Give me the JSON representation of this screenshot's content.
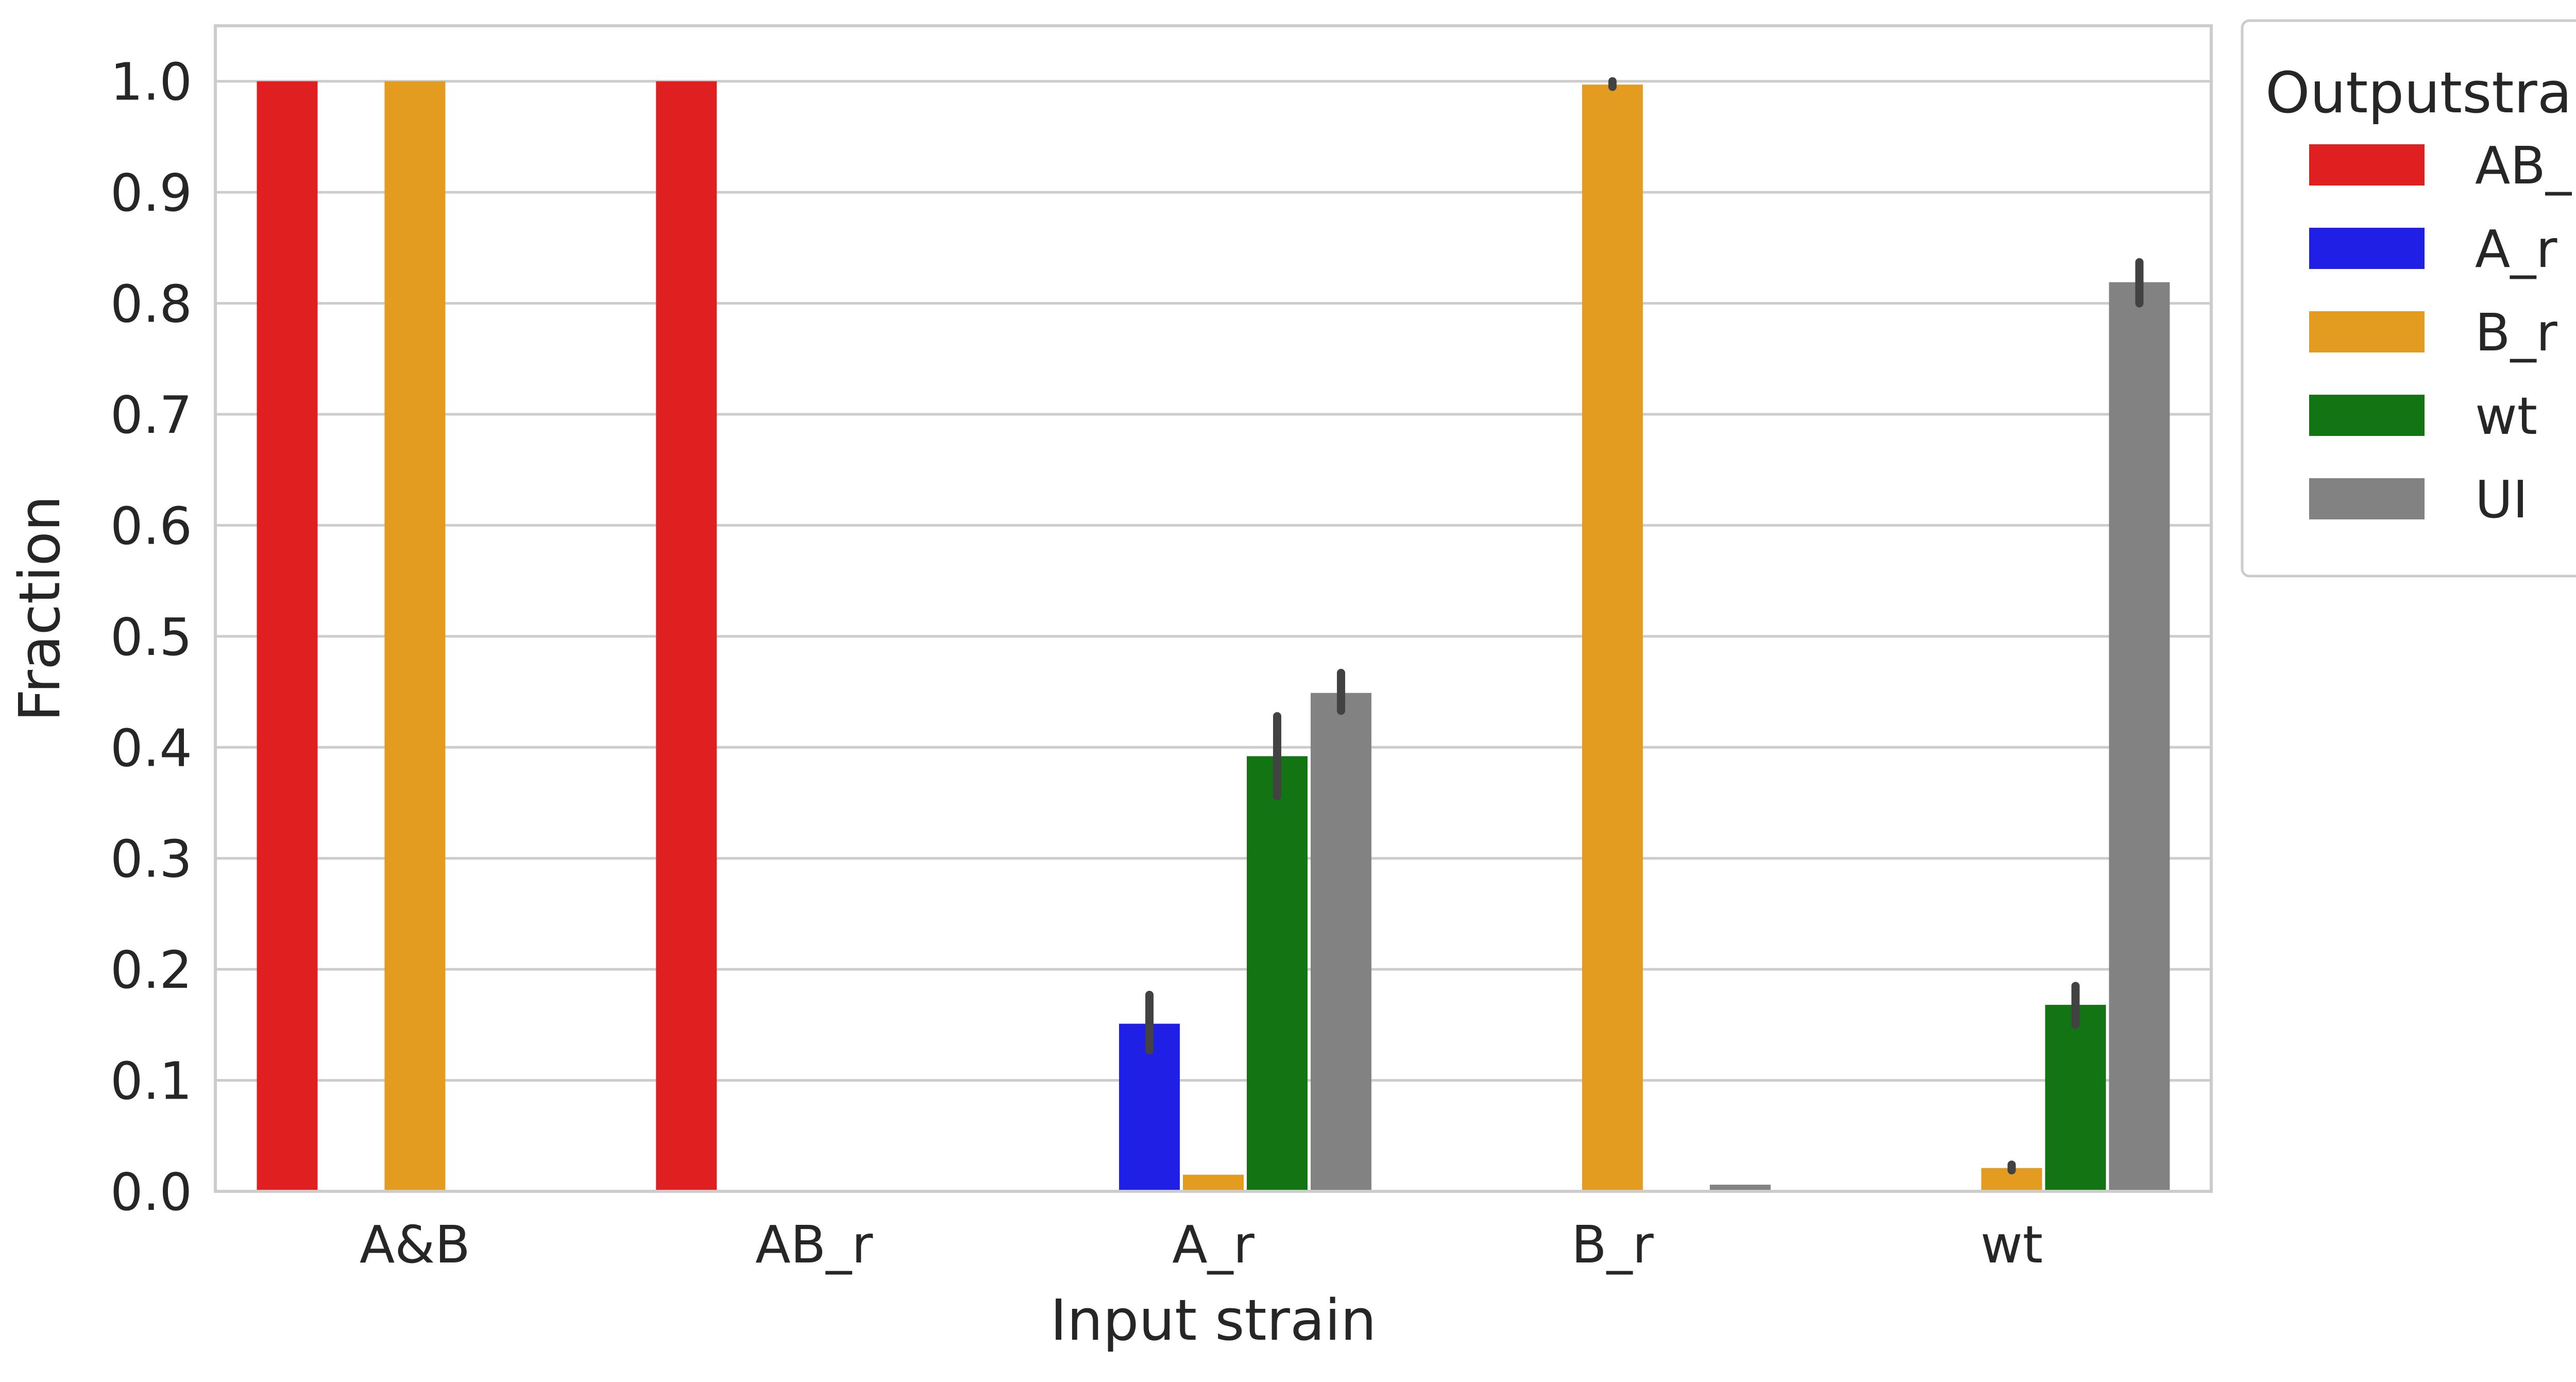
{
  "chart_data": {
    "type": "bar",
    "title": "",
    "xlabel": "Input strain",
    "ylabel": "Fraction",
    "categories": [
      "A&B",
      "AB_r",
      "A_r",
      "B_r",
      "wt"
    ],
    "ylim": [
      0,
      1.05
    ],
    "yticks": [
      0.0,
      0.1,
      0.2,
      0.3,
      0.4,
      0.5,
      0.6,
      0.7,
      0.8,
      0.9,
      1.0
    ],
    "ytick_labels": [
      "0.0",
      "0.1",
      "0.2",
      "0.3",
      "0.4",
      "0.5",
      "0.6",
      "0.7",
      "0.8",
      "0.9",
      "1.0"
    ],
    "grid": "horizontal",
    "legend": {
      "title": "Outputstrains",
      "placement": "outside-right-top"
    },
    "series": [
      {
        "name": "AB_r",
        "color": "#e02020",
        "values": [
          1.0,
          1.0,
          0,
          0,
          0
        ],
        "errors": [
          null,
          null,
          null,
          null,
          null
        ]
      },
      {
        "name": "A_r",
        "color": "#1f1fe6",
        "values": [
          0,
          0,
          0.151,
          0,
          0
        ],
        "errors": [
          null,
          null,
          [
            0.127,
            0.177
          ],
          null,
          null
        ]
      },
      {
        "name": "B_r",
        "color": "#e39b20",
        "values": [
          1.0,
          0,
          0.015,
          0.997,
          0.021
        ],
        "errors": [
          null,
          null,
          null,
          [
            0.995,
            1.0
          ],
          [
            0.019,
            0.024
          ]
        ]
      },
      {
        "name": "wt",
        "color": "#137413",
        "values": [
          0,
          0,
          0.392,
          0,
          0.168
        ],
        "errors": [
          null,
          null,
          [
            0.356,
            0.428
          ],
          null,
          [
            0.15,
            0.185
          ]
        ]
      },
      {
        "name": "UI",
        "color": "#828282",
        "values": [
          0,
          0,
          0.449,
          0.006,
          0.819
        ],
        "errors": [
          null,
          null,
          [
            0.433,
            0.467
          ],
          null,
          [
            0.8,
            0.837
          ]
        ]
      }
    ]
  }
}
